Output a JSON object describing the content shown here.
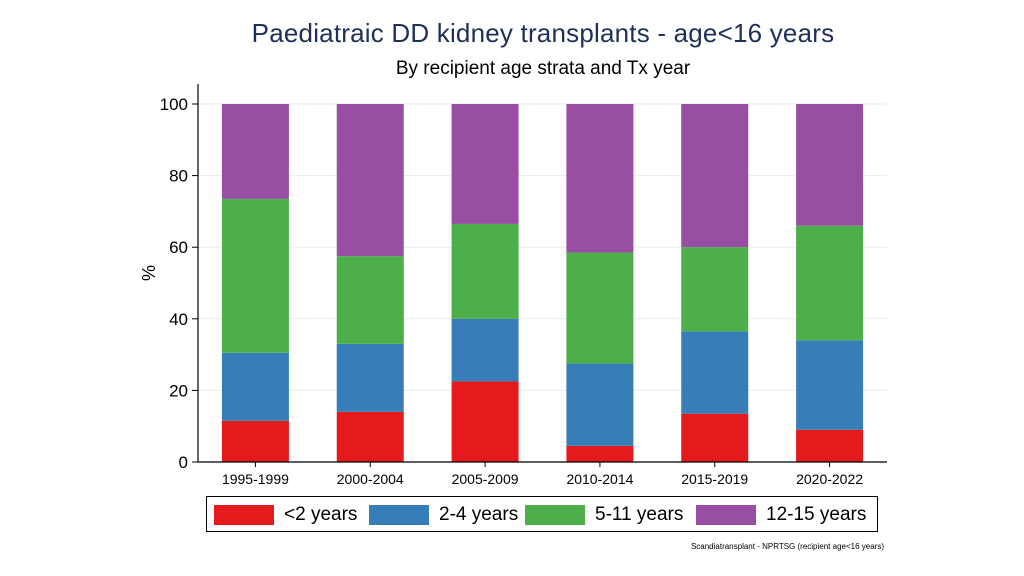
{
  "chart_data": {
    "type": "bar",
    "stacked": true,
    "title": "Paediatraic DD kidney transplants - age<16 years",
    "subtitle": "By recipient age strata and Tx year",
    "xlabel": "",
    "ylabel": "%",
    "ylim": [
      0,
      100
    ],
    "yticks": [
      0,
      20,
      40,
      60,
      80,
      100
    ],
    "grid": true,
    "legend_position": "bottom",
    "categories": [
      "1995-1999",
      "2000-2004",
      "2005-2009",
      "2010-2014",
      "2015-2019",
      "2020-2022"
    ],
    "series": [
      {
        "name": "<2 years",
        "color": "#e41a1c",
        "values": [
          11.5,
          14,
          22.5,
          4.5,
          13.5,
          9
        ]
      },
      {
        "name": "2-4 years",
        "color": "#377eb8",
        "values": [
          19,
          19,
          17.5,
          23,
          23,
          25
        ]
      },
      {
        "name": "5-11 years",
        "color": "#4daf4a",
        "values": [
          43,
          24.5,
          26.5,
          31,
          23.5,
          32
        ]
      },
      {
        "name": "12-15 years",
        "color": "#984ea3",
        "values": [
          26.5,
          42.5,
          33.5,
          41.5,
          40,
          34
        ]
      }
    ],
    "footnote": "Scandiatransplant - NPRTSG (recipient age<16 years)"
  }
}
